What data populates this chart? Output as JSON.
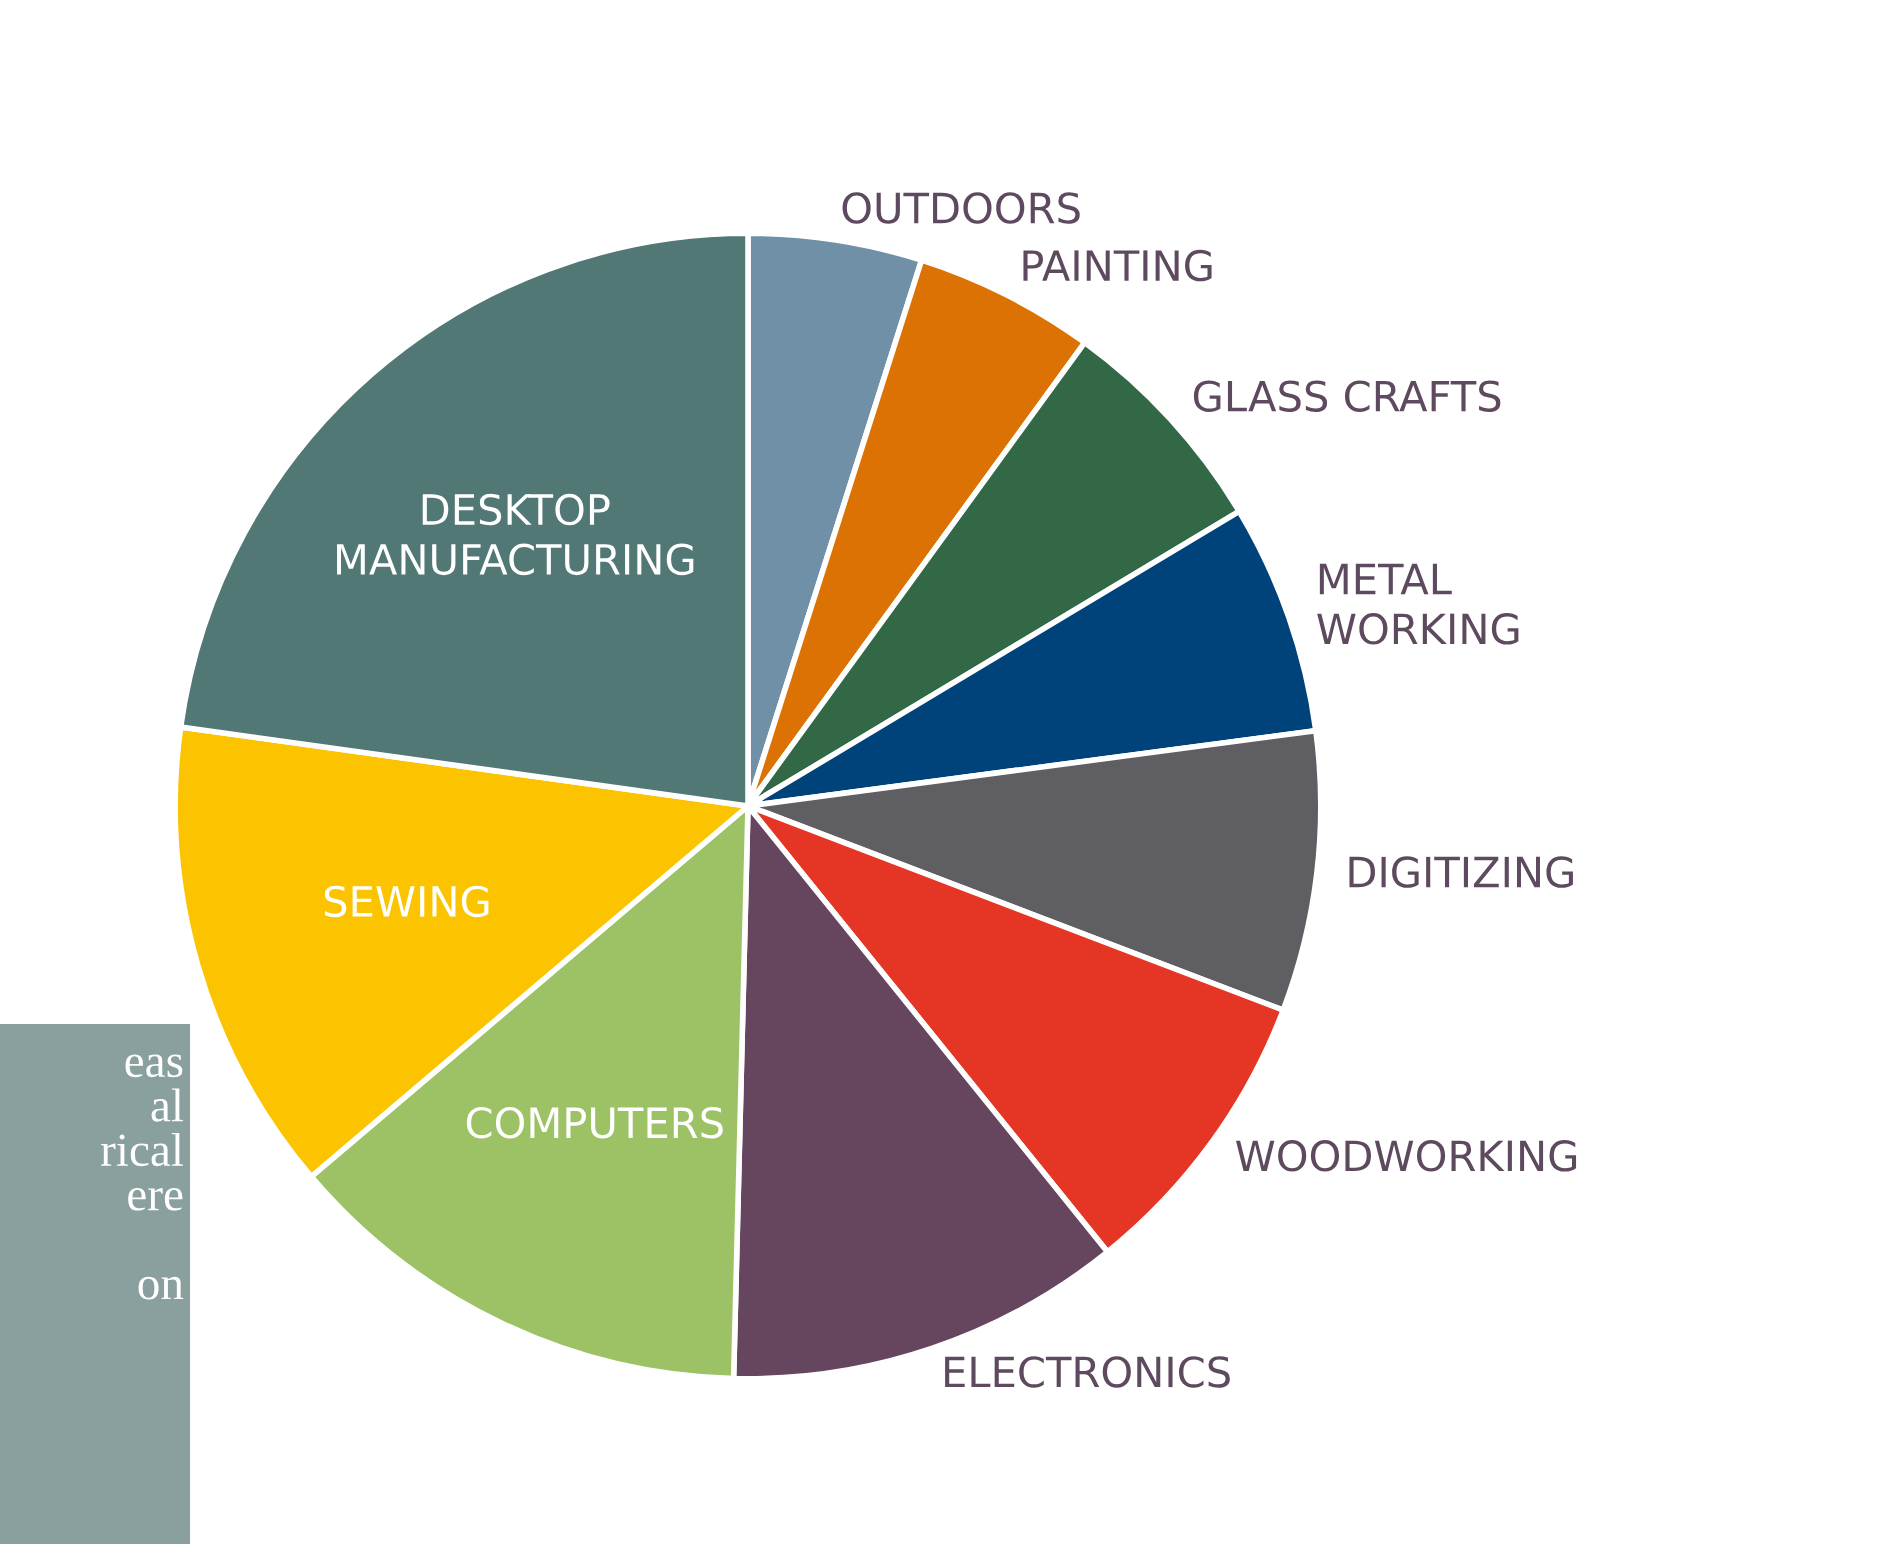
{
  "chart_data": {
    "type": "pie",
    "categories": [
      "OUTDOORS",
      "PAINTING",
      "GLASS CRAFTS",
      "METAL\nWORKING",
      "DIGITIZING",
      "WOODWORKING",
      "ELECTRONICS",
      "COMPUTERS",
      "SEWING",
      "DESKTOP\nMANUFACTURING"
    ],
    "values": [
      4.9,
      5.1,
      6.4,
      6.5,
      7.9,
      8.4,
      11.2,
      13.4,
      13.4,
      22.8
    ],
    "colors": [
      "#7090a8",
      "#dc7203",
      "#336846",
      "#00427a",
      "#5f5e63",
      "#e43525",
      "#66465f",
      "#9dc265",
      "#fcc400",
      "#517875"
    ],
    "annotations": [
      "eas\nal\nrical\nere\n\non"
    ]
  }
}
